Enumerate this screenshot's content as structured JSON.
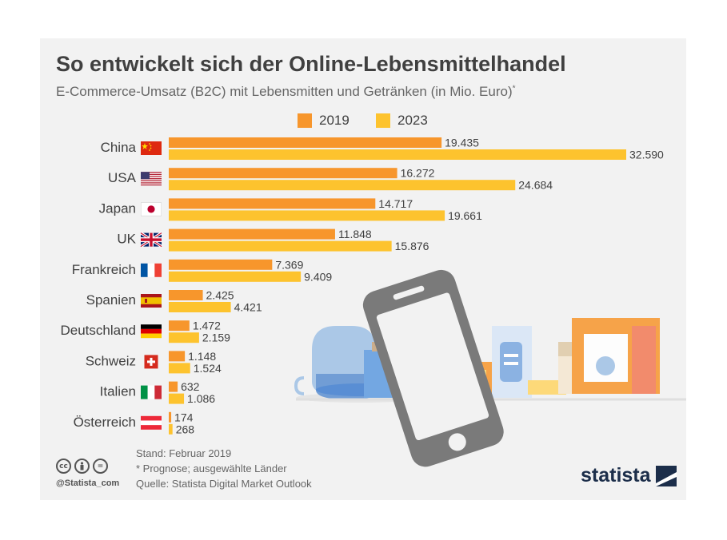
{
  "header": {
    "title": "So entwickelt sich der Online-Lebensmittelhandel",
    "subtitle": "E-Commerce-Umsatz (B2C) mit Lebensmitten und Getränken (in Mio. Euro)",
    "subtitle_mark": "*"
  },
  "colors": {
    "series_2019": "#f7962c",
    "series_2023": "#fdc32e",
    "background": "#f2f2f2",
    "text": "#404040"
  },
  "chart_data": {
    "type": "bar",
    "orientation": "horizontal",
    "categories": [
      "China",
      "USA",
      "Japan",
      "UK",
      "Frankreich",
      "Spanien",
      "Deutschland",
      "Schweiz",
      "Italien",
      "Österreich"
    ],
    "category_icons": [
      "flag-china-icon",
      "flag-usa-icon",
      "flag-japan-icon",
      "flag-uk-icon",
      "flag-france-icon",
      "flag-spain-icon",
      "flag-germany-icon",
      "flag-switzerland-icon",
      "flag-italy-icon",
      "flag-austria-icon"
    ],
    "series": [
      {
        "name": "2019",
        "values": [
          19435,
          16272,
          14717,
          11848,
          7369,
          2425,
          1472,
          1148,
          632,
          174
        ],
        "labels": [
          "19.435",
          "16.272",
          "14.717",
          "11.848",
          "7.369",
          "2.425",
          "1.472",
          "1.148",
          "632",
          "174"
        ]
      },
      {
        "name": "2023",
        "values": [
          32590,
          24684,
          19661,
          15876,
          9409,
          4421,
          2159,
          1524,
          1086,
          268
        ],
        "labels": [
          "32.590",
          "24.684",
          "19.661",
          "15.876",
          "9.409",
          "4.421",
          "2.159",
          "1.524",
          "1.086",
          "268"
        ]
      }
    ],
    "xlim": [
      0,
      32590
    ],
    "grid": false,
    "legend_position": "top"
  },
  "illustration": {
    "icon": "smartphone-groceries-icon"
  },
  "footer": {
    "stand": "Stand: Februar 2019",
    "note": "* Prognose; ausgewählte Länder",
    "source": "Quelle: Statista Digital Market Outlook",
    "handle": "@Statista_com",
    "cc_icons": [
      "cc-icon",
      "by-icon",
      "nd-icon"
    ],
    "brand": "statista"
  }
}
